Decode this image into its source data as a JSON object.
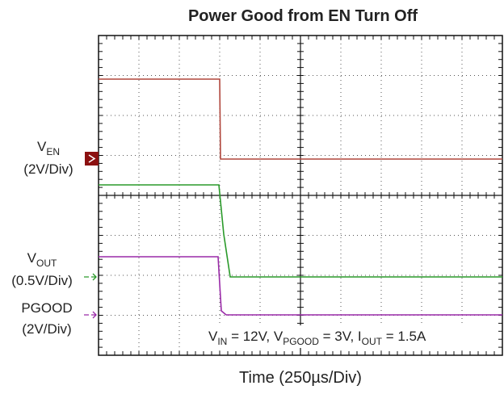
{
  "title": "Power Good from EN Turn Off",
  "channels": [
    {
      "name": "V",
      "sub": "EN",
      "scale": "(2V/Div)"
    },
    {
      "name": "V",
      "sub": "OUT",
      "scale": "(0.5V/Div)"
    },
    {
      "name": "PGOOD",
      "scale": "(2V/Div)"
    }
  ],
  "annotation": [
    "V",
    "IN",
    " = 12V, V",
    "PGOOD",
    " = 3V, I",
    "OUT",
    " = 1.5A"
  ],
  "x_label": "Time (250µs/Div)"
}
